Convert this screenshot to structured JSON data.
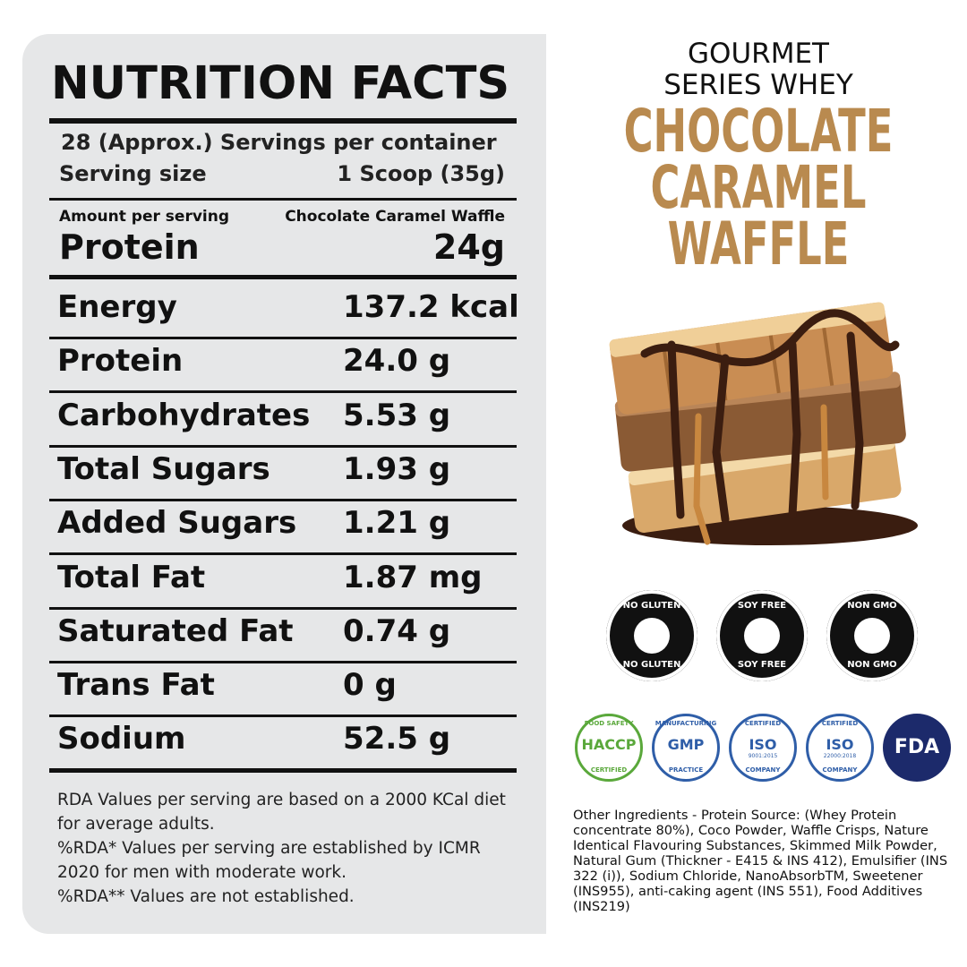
{
  "nutrition": {
    "title": "NUTRITION FACTS",
    "servings": "28 (Approx.) Servings per container",
    "serving_size_label": "Serving size",
    "serving_size": "1 Scoop (35g)",
    "amount_label": "Amount per serving",
    "flavor": "Chocolate Caramel Waffle",
    "headline_nutrient": "Protein",
    "headline_amount": "24g",
    "rows": [
      [
        "Energy",
        "137.2 kcal"
      ],
      [
        "Protein",
        "24.0 g"
      ],
      [
        "Carbohydrates",
        "5.53 g"
      ],
      [
        "Total Sugars",
        "1.93 g"
      ],
      [
        "Added Sugars",
        "1.21 g"
      ],
      [
        "Total Fat",
        "1.87 mg"
      ],
      [
        "Saturated Fat",
        "0.74 g"
      ],
      [
        "Trans Fat",
        "0 g"
      ],
      [
        "Sodium",
        "52.5 g"
      ]
    ],
    "notes": [
      "RDA Values per serving are based on a 2000 KCal diet for average adults.",
      "%RDA* Values per serving are established by ICMR 2020 for men with moderate work.",
      "%RDA** Values are not established."
    ]
  },
  "product": {
    "series": [
      "GOURMET",
      "SERIES WHEY"
    ],
    "flavor": [
      "CHOCOLATE",
      "CARAMEL",
      "WAFFLE"
    ]
  },
  "badges": [
    "NO GLUTEN",
    "SOY FREE",
    "NON GMO"
  ],
  "certifications": [
    {
      "top": "FOOD SAFETY",
      "main": "HACCP",
      "bottom": "CERTIFIED"
    },
    {
      "top": "MANUFACTURING",
      "main": "GMP",
      "bottom": "PRACTICE"
    },
    {
      "top": "CERTIFIED",
      "main": "ISO",
      "sub": "9001:2015",
      "bottom": "COMPANY"
    },
    {
      "top": "CERTIFIED",
      "main": "ISO",
      "sub": "22000:2018",
      "bottom": "COMPANY"
    },
    {
      "main": "FDA"
    }
  ],
  "ingredients": "Other Ingredients - Protein Source: (Whey Protein concentrate 80%), Coco Powder, Waffle Crisps, Nature Identical Flavouring Substances, Skimmed Milk Powder, Natural Gum (Thickner - E415 & INS 412), Emulsifier (INS 322 (i)), Sodium Chloride, NanoAbsorbTM, Sweetener (INS955), anti-caking agent (INS 551), Food Additives (INS219)"
}
